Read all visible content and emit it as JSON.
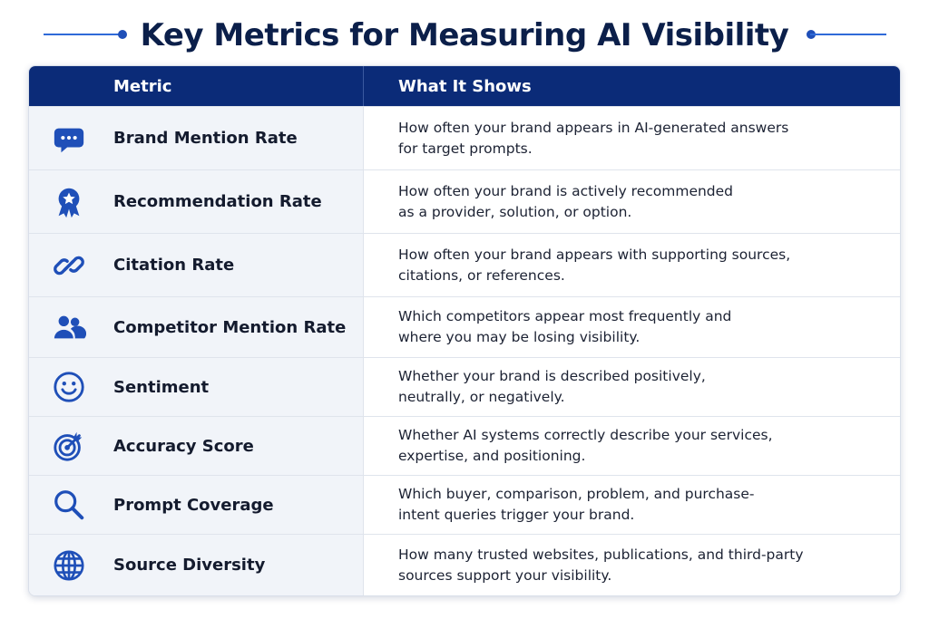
{
  "title": "Key Metrics for Measuring AI Visibility",
  "headers": {
    "metric": "Metric",
    "shows": "What It Shows"
  },
  "rows": [
    {
      "icon": "chat-bubble-icon",
      "metric": "Brand Mention Rate",
      "description": "How often your brand appears in AI-generated answers\nfor target prompts."
    },
    {
      "icon": "award-badge-icon",
      "metric": "Recommendation Rate",
      "description": "How often your brand is actively recommended\nas a provider, solution, or option."
    },
    {
      "icon": "link-icon",
      "metric": "Citation Rate",
      "description": "How often your brand appears with supporting sources,\ncitations, or references."
    },
    {
      "icon": "users-icon",
      "metric": "Competitor Mention Rate",
      "description": "Which competitors appear most frequently and\nwhere you may be losing visibility."
    },
    {
      "icon": "smiley-icon",
      "metric": "Sentiment",
      "description": "Whether your brand is described positively,\nneutrally, or negatively."
    },
    {
      "icon": "target-icon",
      "metric": "Accuracy Score",
      "description": "Whether AI systems correctly describe your services,\nexpertise, and positioning."
    },
    {
      "icon": "search-icon",
      "metric": "Prompt Coverage",
      "description": "Which buyer, comparison, problem, and purchase-\nintent queries trigger your brand."
    },
    {
      "icon": "globe-icon",
      "metric": "Source Diversity",
      "description": "How many trusted websites, publications, and third-party\nsources support your visibility."
    }
  ],
  "colors": {
    "header_bg": "#0b2b78",
    "title": "#0b1f4a",
    "icon": "#1f4fb8",
    "accent_line": "#2f6ad8"
  }
}
